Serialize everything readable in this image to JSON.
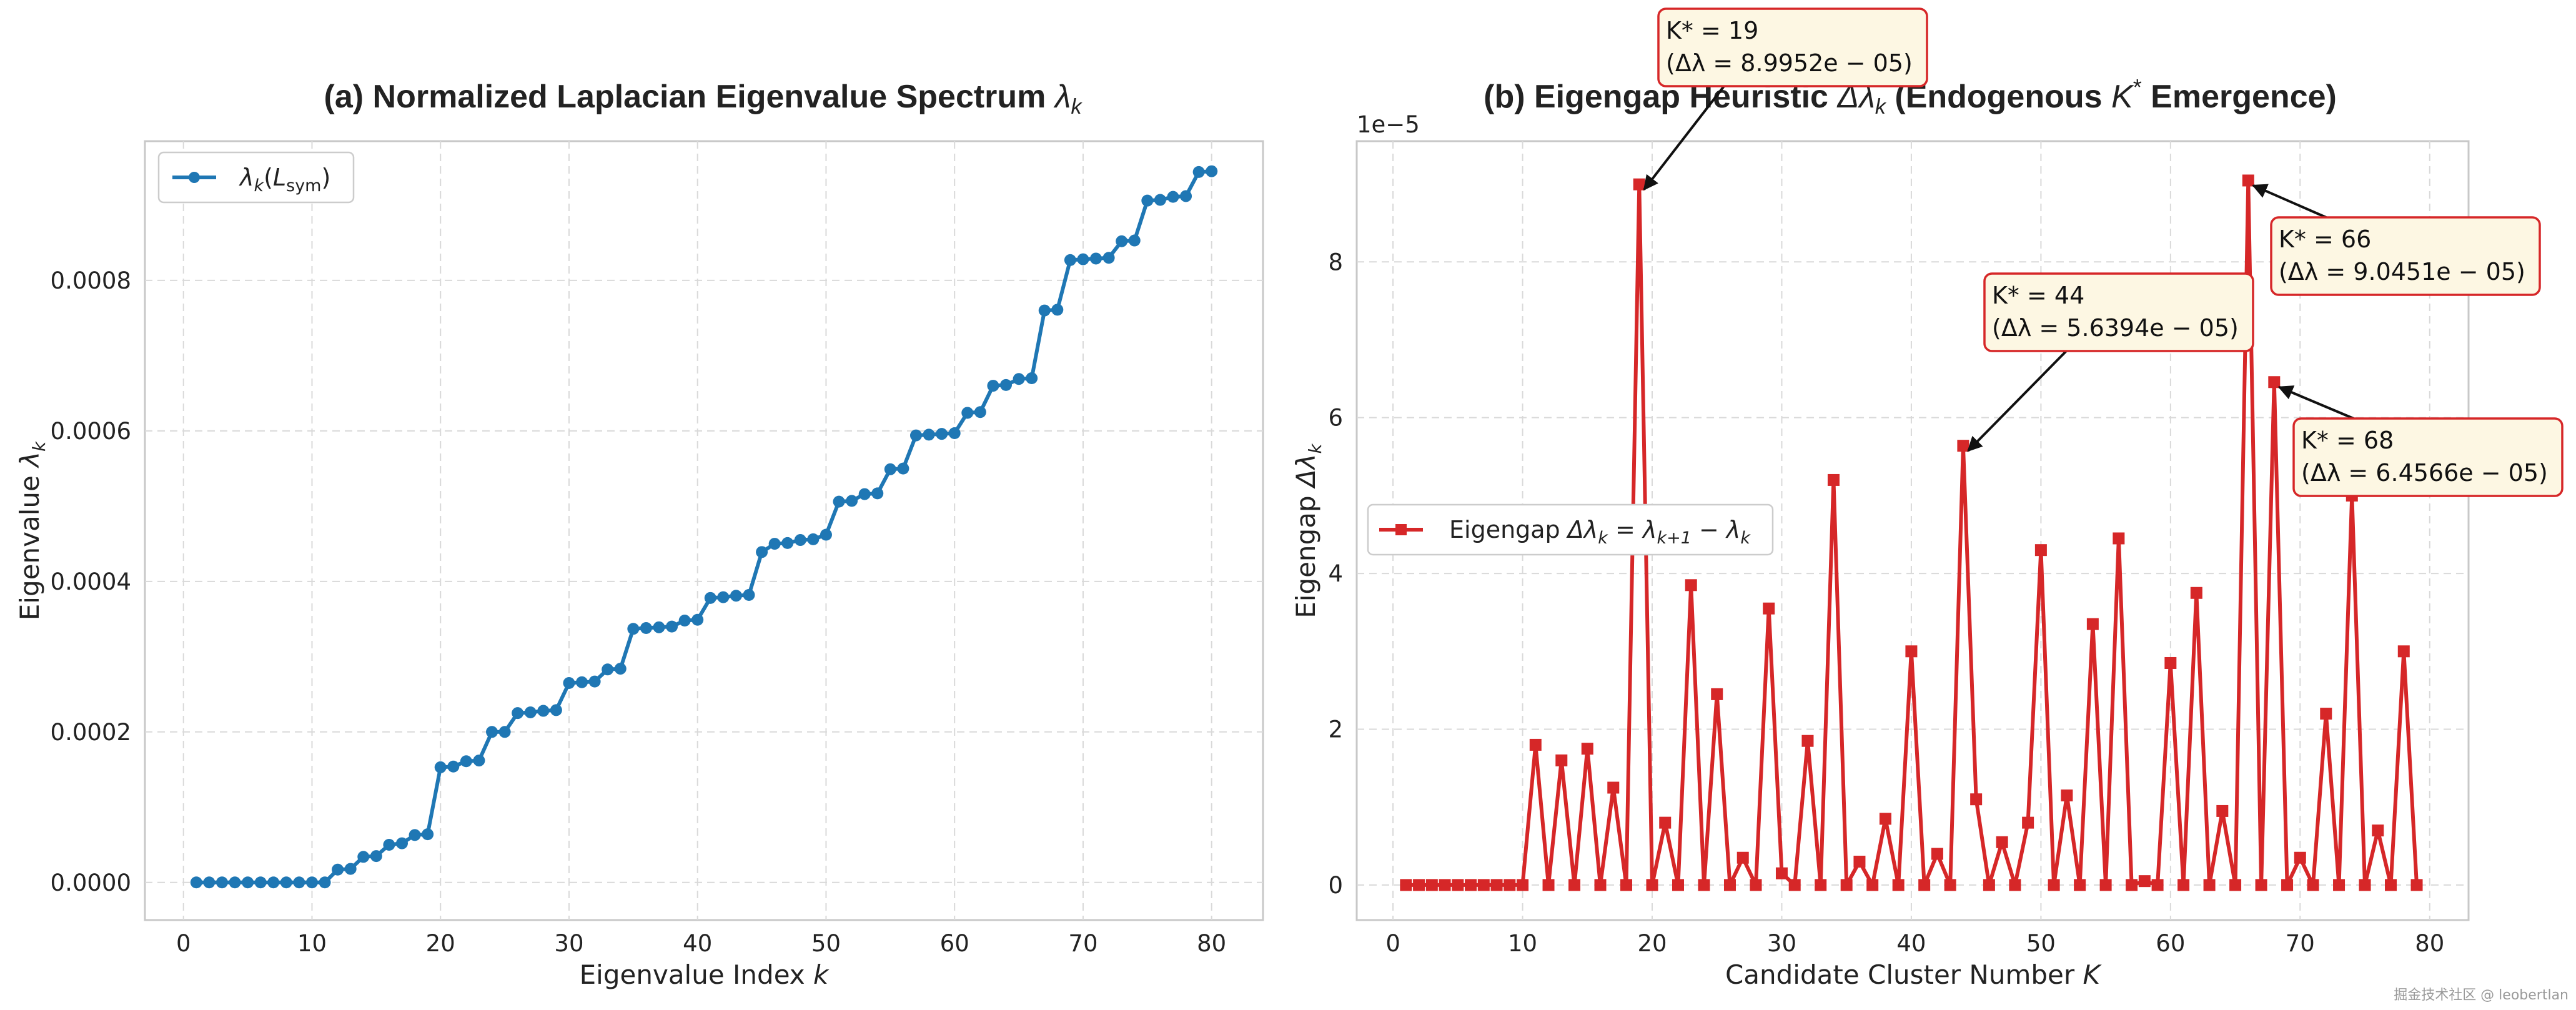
{
  "watermark": "掘金技术社区 @ leobertlan",
  "chart_data": [
    {
      "type": "line",
      "title": "(a) Normalized Laplacian Eigenvalue Spectrum",
      "title_symbol": "λ",
      "title_sub": "k",
      "xlabel": "Eigenvalue Index",
      "xlabel_symbol": "k",
      "ylabel": "Eigenvalue",
      "ylabel_symbol": "λ",
      "ylabel_sub": "k",
      "xlim": [
        -3,
        84
      ],
      "ylim": [
        -5e-05,
        0.000985
      ],
      "xticks": [
        0,
        10,
        20,
        30,
        40,
        50,
        60,
        70,
        80
      ],
      "yticks": [
        0,
        0.0002,
        0.0004,
        0.0006,
        0.0008
      ],
      "ytick_labels": [
        "0.0000",
        "0.0002",
        "0.0004",
        "0.0006",
        "0.0008"
      ],
      "grid": true,
      "legend_placement": "top-left",
      "color": "#1f77b4",
      "series": [
        {
          "name": "λk(Lsym)",
          "label": {
            "sym": "λ",
            "sub": "k",
            "paren_open": "(",
            "inner": "L",
            "inner_sub": "sym",
            "paren_close": ")"
          },
          "x": [
            1,
            2,
            3,
            4,
            5,
            6,
            7,
            8,
            9,
            10,
            11,
            12,
            13,
            14,
            15,
            16,
            17,
            18,
            19,
            20,
            21,
            22,
            23,
            24,
            25,
            26,
            27,
            28,
            29,
            30,
            31,
            32,
            33,
            34,
            35,
            36,
            37,
            38,
            39,
            40,
            41,
            42,
            43,
            44,
            45,
            46,
            47,
            48,
            49,
            50,
            51,
            52,
            53,
            54,
            55,
            56,
            57,
            58,
            59,
            60,
            61,
            62,
            63,
            64,
            65,
            66,
            67,
            68,
            69,
            70,
            71,
            72,
            73,
            74,
            75,
            76,
            77,
            78,
            79,
            80
          ],
          "values": [
            0,
            0,
            0,
            0,
            0,
            0,
            0,
            0,
            0,
            0,
            0,
            1.7e-05,
            1.8e-05,
            3.4e-05,
            3.5e-05,
            5e-05,
            5.2e-05,
            6.3e-05,
            6.4e-05,
            0.000153,
            0.000154,
            0.000161,
            0.000162,
            0.0002,
            0.0002,
            0.000225,
            0.000226,
            0.000228,
            0.000229,
            0.000265,
            0.000266,
            0.000267,
            0.000283,
            0.000284,
            0.000337,
            0.000338,
            0.000339,
            0.00034,
            0.000348,
            0.000349,
            0.000378,
            0.000379,
            0.000381,
            0.000382,
            0.000439,
            0.00045,
            0.000451,
            0.000455,
            0.000456,
            0.000462,
            0.000506,
            0.000507,
            0.000516,
            0.000517,
            0.000549,
            0.00055,
            0.000594,
            0.000595,
            0.000596,
            0.000597,
            0.000624,
            0.000625,
            0.00066,
            0.000661,
            0.000669,
            0.00067,
            0.00076,
            0.000761,
            0.000827,
            0.000828,
            0.000829,
            0.00083,
            0.000852,
            0.000853,
            0.000906,
            0.000907,
            0.000911,
            0.000912,
            0.000944,
            0.000945
          ]
        }
      ]
    },
    {
      "type": "line",
      "title": "(b) Eigengap Heuristic",
      "title_symbol": "Δλ",
      "title_sub": "k",
      "title_rest_1": "(Endogenous",
      "title_symbol_2": "K",
      "title_sup_2": "*",
      "title_rest_2": "Emergence)",
      "xlabel": "Candidate Cluster Number",
      "xlabel_symbol": "K",
      "ylabel": "Eigengap",
      "ylabel_symbol": "Δλ",
      "ylabel_sub": "k",
      "axis_offset_label": "1e−5",
      "xlim": [
        -2.8,
        83
      ],
      "ylim": [
        -0.45,
        9.55
      ],
      "xticks": [
        0,
        10,
        20,
        30,
        40,
        50,
        60,
        70,
        80
      ],
      "yticks": [
        0,
        2,
        4,
        6,
        8
      ],
      "ytick_labels": [
        "0",
        "2",
        "4",
        "6",
        "8"
      ],
      "grid": true,
      "legend_placement": "center-left",
      "color": "#d62728",
      "series": [
        {
          "name": "Eigengap Δλk = λk+1 − λk",
          "label": {
            "text": "Eigengap",
            "s1": "Δλ",
            "s1_sub": "k",
            "eq": "=",
            "s2": "λ",
            "s2_sub": "k+1",
            "minus": "−",
            "s3": "λ",
            "s3_sub": "k"
          },
          "x": [
            1,
            2,
            3,
            4,
            5,
            6,
            7,
            8,
            9,
            10,
            11,
            12,
            13,
            14,
            15,
            16,
            17,
            18,
            19,
            20,
            21,
            22,
            23,
            24,
            25,
            26,
            27,
            28,
            29,
            30,
            31,
            32,
            33,
            34,
            35,
            36,
            37,
            38,
            39,
            40,
            41,
            42,
            43,
            44,
            45,
            46,
            47,
            48,
            49,
            50,
            51,
            52,
            53,
            54,
            55,
            56,
            57,
            58,
            59,
            60,
            61,
            62,
            63,
            64,
            65,
            66,
            67,
            68,
            69,
            70,
            71,
            72,
            73,
            74,
            75,
            76,
            77,
            78,
            79
          ],
          "values": [
            0,
            0,
            0,
            0,
            0,
            0,
            0,
            0,
            0,
            0,
            1.8,
            0,
            1.6,
            0,
            1.75,
            0,
            1.25,
            0,
            8.9952,
            0,
            0.8,
            0,
            3.85,
            0,
            2.45,
            0,
            0.35,
            0,
            3.55,
            0.15,
            0,
            1.85,
            0,
            5.2,
            0,
            0.3,
            0,
            0.85,
            0,
            3.0,
            0,
            0.4,
            0,
            5.6394,
            1.1,
            0,
            0.55,
            0,
            0.8,
            4.3,
            0,
            1.15,
            0,
            3.35,
            0,
            4.45,
            0,
            0.05,
            0,
            2.85,
            0,
            3.75,
            0,
            0.95,
            0,
            9.0451,
            0,
            6.4566,
            0,
            0.35,
            0,
            2.2,
            0,
            5.0,
            0,
            0.7,
            0,
            3.0,
            0
          ]
        }
      ],
      "annotations": [
        {
          "x": 19,
          "y": 8.9952,
          "line1": "K* = 19",
          "line2": "(Δλ = 8.9952e − 05)",
          "k": "19",
          "value": "8.9952e − 05"
        },
        {
          "x": 44,
          "y": 5.6394,
          "line1": "K* = 44",
          "line2": "(Δλ = 5.6394e − 05)",
          "k": "44",
          "value": "5.6394e − 05"
        },
        {
          "x": 66,
          "y": 9.0451,
          "line1": "K* = 66",
          "line2": "(Δλ = 9.0451e − 05)",
          "k": "66",
          "value": "9.0451e − 05"
        },
        {
          "x": 68,
          "y": 6.4566,
          "line1": "K* = 68",
          "line2": "(Δλ = 6.4566e − 05)",
          "k": "68",
          "value": "6.4566e − 05"
        }
      ]
    }
  ]
}
